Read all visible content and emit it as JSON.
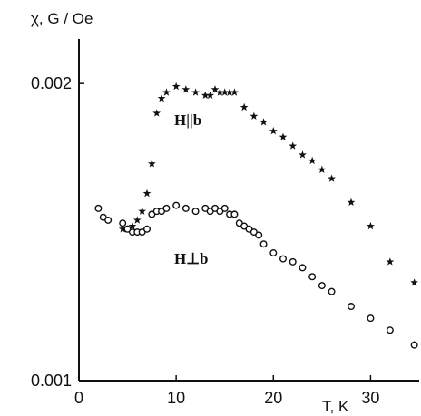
{
  "chart_data": {
    "type": "scatter",
    "ylabel": "χ, G / Oe",
    "xlabel": "T, K",
    "xlim": [
      0,
      35
    ],
    "ylim": [
      0.001,
      0.00215
    ],
    "x_ticks": [
      0,
      10,
      20,
      30
    ],
    "y_ticks": [
      0.001,
      0.002
    ],
    "x_tick_labels": [
      "0",
      "10",
      "20",
      "30"
    ],
    "y_tick_labels": [
      "0.001",
      "0.002"
    ],
    "grid": false,
    "series": [
      {
        "name": "H||b",
        "marker": "star",
        "x": [
          4.5,
          5.0,
          5.5,
          6.0,
          6.5,
          7.0,
          7.5,
          8.0,
          8.5,
          9.0,
          10.0,
          11.0,
          12.0,
          13.0,
          13.5,
          14.0,
          14.5,
          15.0,
          15.5,
          16.0,
          17.0,
          18.0,
          19.0,
          20.0,
          21.0,
          22.0,
          23.0,
          24.0,
          25.0,
          26.0,
          28.0,
          30.0,
          32.0,
          34.5
        ],
        "y": [
          0.00151,
          0.00151,
          0.00152,
          0.00154,
          0.00157,
          0.00163,
          0.00173,
          0.0019,
          0.00195,
          0.00197,
          0.00199,
          0.00198,
          0.00197,
          0.00196,
          0.00196,
          0.00198,
          0.00197,
          0.00197,
          0.00197,
          0.00197,
          0.00192,
          0.00189,
          0.00187,
          0.00184,
          0.00182,
          0.00179,
          0.00176,
          0.00174,
          0.00171,
          0.00168,
          0.0016,
          0.00152,
          0.0014,
          0.00133
        ]
      },
      {
        "name": "H⊥b",
        "marker": "open-circle",
        "x": [
          2.0,
          2.5,
          3.0,
          4.5,
          5.0,
          5.5,
          6.0,
          6.5,
          7.0,
          7.5,
          8.0,
          8.5,
          9.0,
          10.0,
          11.0,
          12.0,
          13.0,
          13.5,
          14.0,
          14.5,
          15.0,
          15.5,
          16.0,
          16.5,
          17.0,
          17.5,
          18.0,
          18.5,
          19.0,
          20.0,
          21.0,
          22.0,
          23.0,
          24.0,
          25.0,
          26.0,
          28.0,
          30.0,
          32.0,
          34.5
        ],
        "y": [
          0.00158,
          0.00155,
          0.00154,
          0.00153,
          0.00151,
          0.0015,
          0.0015,
          0.0015,
          0.00151,
          0.00156,
          0.00157,
          0.00157,
          0.00158,
          0.00159,
          0.00158,
          0.00157,
          0.00158,
          0.00157,
          0.00158,
          0.00157,
          0.00158,
          0.00156,
          0.00156,
          0.00153,
          0.00152,
          0.00151,
          0.0015,
          0.00149,
          0.00146,
          0.00143,
          0.00141,
          0.0014,
          0.00138,
          0.00135,
          0.00132,
          0.0013,
          0.00125,
          0.00121,
          0.00117,
          0.00112
        ]
      }
    ]
  }
}
